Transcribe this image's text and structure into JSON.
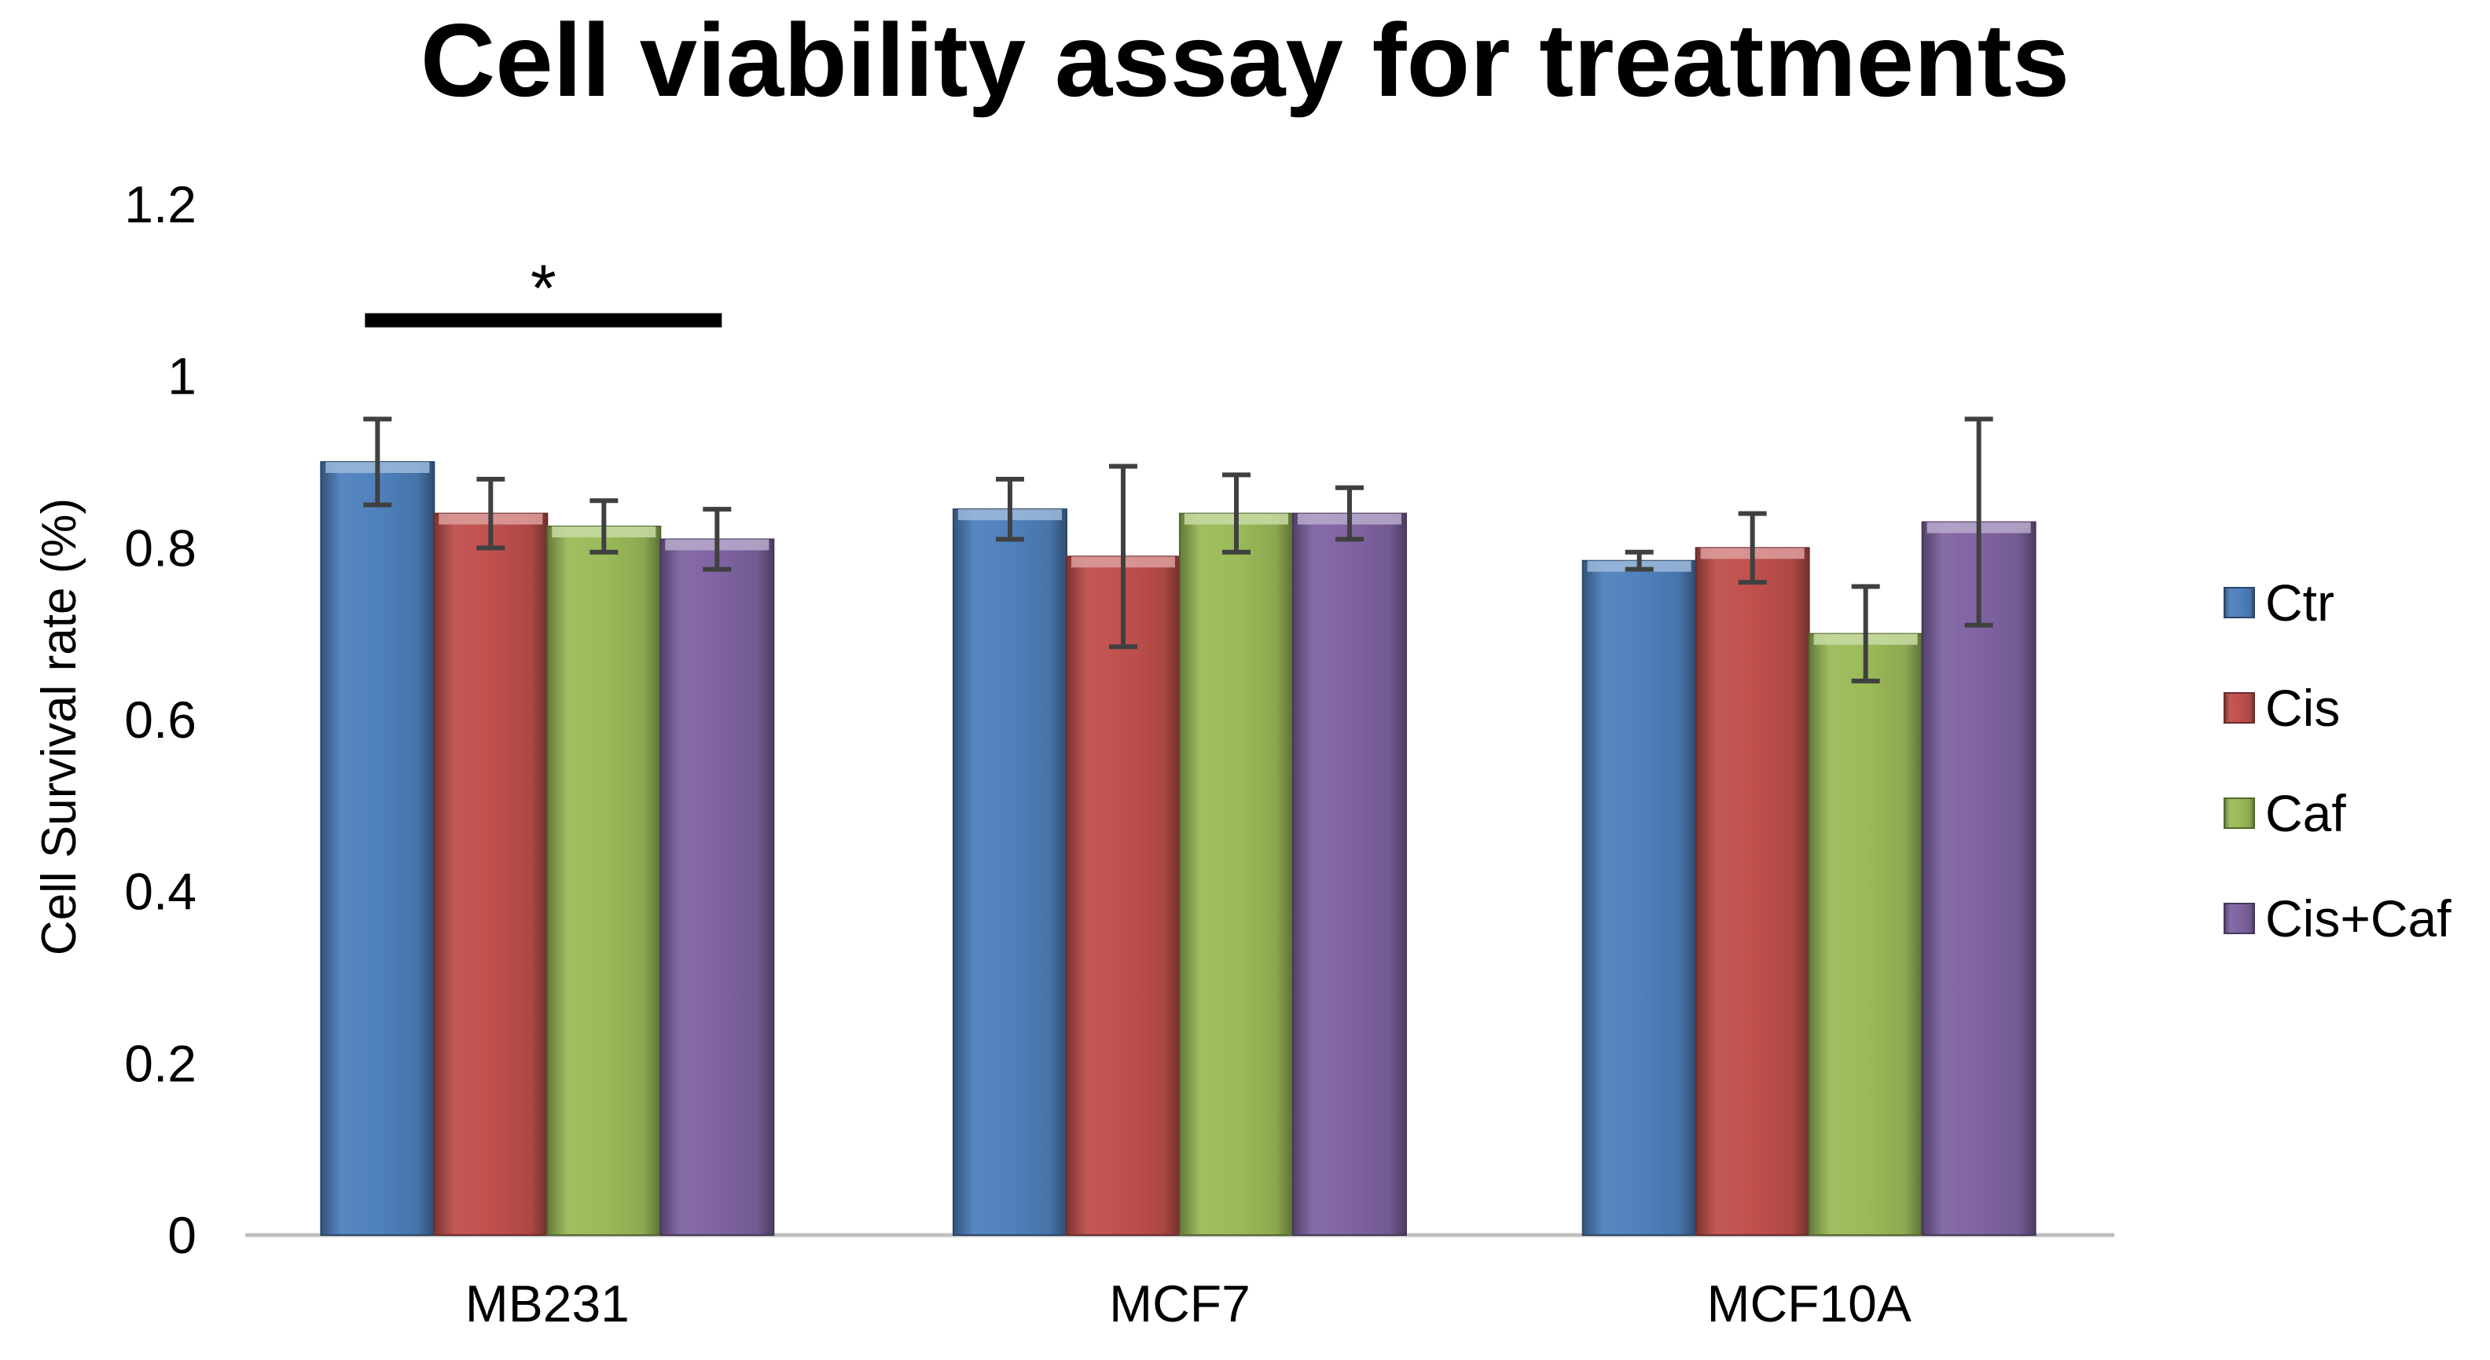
{
  "chart_data": {
    "type": "bar",
    "title": "Cell viability assay for treatments",
    "xlabel": "",
    "ylabel": "Cell Survival rate (%)",
    "ylim": [
      0,
      1.2
    ],
    "yticks": [
      0,
      0.2,
      0.4,
      0.6,
      0.8,
      1,
      1.2
    ],
    "ytick_labels": [
      "0",
      "0.2",
      "0.4",
      "0.6",
      "0.8",
      "1",
      "1.2"
    ],
    "categories": [
      "MB231",
      "MCF7",
      "MCF10A"
    ],
    "series": [
      {
        "name": "Ctr",
        "values": [
          0.9,
          0.845,
          0.785
        ],
        "errors": [
          0.05,
          0.035,
          0.01
        ],
        "color": "#4F81BD"
      },
      {
        "name": "Cis",
        "values": [
          0.84,
          0.79,
          0.8
        ],
        "errors": [
          0.04,
          0.105,
          0.04
        ],
        "color": "#C0504D"
      },
      {
        "name": "Caf",
        "values": [
          0.825,
          0.84,
          0.7
        ],
        "errors": [
          0.03,
          0.045,
          0.055
        ],
        "color": "#9BBB59"
      },
      {
        "name": "Cis+Caf",
        "values": [
          0.81,
          0.84,
          0.83
        ],
        "errors": [
          0.035,
          0.03,
          0.12
        ],
        "color": "#8064A2"
      }
    ],
    "annotations": [
      {
        "text": "*",
        "category": "MB231",
        "y": 1.07
      }
    ],
    "grid": false,
    "legend": "right"
  }
}
